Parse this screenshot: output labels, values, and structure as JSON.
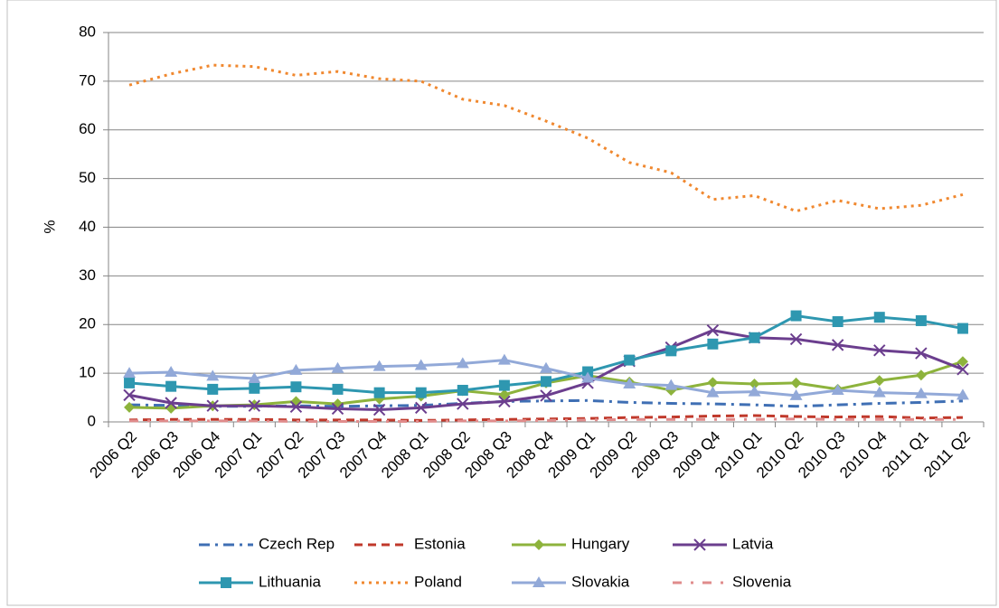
{
  "chart_data": {
    "type": "line",
    "y_label": "%",
    "categories": [
      "2006 Q2",
      "2006 Q3",
      "2006 Q4",
      "2007 Q1",
      "2007 Q2",
      "2007 Q3",
      "2007 Q4",
      "2008 Q1",
      "2008 Q2",
      "2008 Q3",
      "2008 Q4",
      "2009 Q1",
      "2009 Q2",
      "2009 Q3",
      "2009 Q4",
      "2010 Q1",
      "2010 Q2",
      "2010 Q3",
      "2010 Q4",
      "2011 Q1",
      "2011 Q2"
    ],
    "ylim": [
      0,
      80
    ],
    "yticks": [
      0,
      10,
      20,
      30,
      40,
      50,
      60,
      70,
      80
    ],
    "grid": true,
    "legend": "bottom",
    "series": [
      {
        "name": "Czech Rep",
        "color": "#3f6fb4",
        "dash": "dashdot",
        "marker": "none",
        "values": [
          3.5,
          3.4,
          3.2,
          3.2,
          3.3,
          3.2,
          3.3,
          3.4,
          3.8,
          4.2,
          4.3,
          4.4,
          4.0,
          3.8,
          3.7,
          3.5,
          3.2,
          3.5,
          3.8,
          4.0,
          4.3
        ]
      },
      {
        "name": "Estonia",
        "color": "#c0392b",
        "dash": "dash",
        "marker": "none",
        "values": [
          0.4,
          0.5,
          0.5,
          0.5,
          0.4,
          0.4,
          0.4,
          0.3,
          0.4,
          0.5,
          0.6,
          0.7,
          0.9,
          1.0,
          1.2,
          1.3,
          1.1,
          1.0,
          1.1,
          0.8,
          0.9
        ]
      },
      {
        "name": "Hungary",
        "color": "#8db33c",
        "dash": "solid",
        "marker": "diamond",
        "values": [
          3.0,
          2.8,
          3.3,
          3.5,
          4.2,
          3.7,
          4.7,
          5.3,
          6.4,
          5.6,
          8.0,
          9.5,
          8.2,
          6.5,
          8.1,
          7.8,
          8.0,
          6.7,
          8.5,
          9.6,
          12.4
        ]
      },
      {
        "name": "Latvia",
        "color": "#6b3e8e",
        "dash": "solid",
        "marker": "x",
        "values": [
          5.5,
          3.9,
          3.3,
          3.3,
          3.1,
          2.7,
          2.5,
          2.9,
          3.7,
          4.2,
          5.4,
          8.0,
          12.5,
          15.3,
          18.8,
          17.3,
          17.0,
          15.8,
          14.7,
          14.1,
          10.8
        ]
      },
      {
        "name": "Lithuania",
        "color": "#2e97b0",
        "dash": "solid",
        "marker": "square",
        "values": [
          8.0,
          7.3,
          6.7,
          6.9,
          7.2,
          6.7,
          6.0,
          6.0,
          6.5,
          7.5,
          8.3,
          10.3,
          12.7,
          14.6,
          16.0,
          17.3,
          21.8,
          20.6,
          21.5,
          20.8,
          19.2
        ]
      },
      {
        "name": "Poland",
        "color": "#f0882f",
        "dash": "dot",
        "marker": "none",
        "values": [
          69.2,
          71.5,
          73.3,
          73.0,
          71.2,
          72.0,
          70.5,
          70.0,
          66.3,
          65.0,
          61.8,
          58.3,
          53.3,
          51.2,
          45.7,
          46.5,
          43.3,
          45.5,
          43.8,
          44.5,
          46.7
        ]
      },
      {
        "name": "Slovakia",
        "color": "#92a9d8",
        "dash": "solid",
        "marker": "triangle",
        "values": [
          10.0,
          10.2,
          9.4,
          8.9,
          10.6,
          11.0,
          11.4,
          11.6,
          12.0,
          12.7,
          11.0,
          9.0,
          7.8,
          7.5,
          6.0,
          6.2,
          5.4,
          6.5,
          6.0,
          5.8,
          5.5
        ]
      },
      {
        "name": "Slovenia",
        "color": "#e08c8c",
        "dash": "sparsedashdot",
        "marker": "none",
        "values": [
          0.2,
          0.2,
          0.2,
          0.2,
          0.1,
          0.1,
          0.1,
          0.1,
          0.2,
          0.2,
          0.3,
          0.4,
          0.5,
          0.5,
          0.5,
          0.5,
          0.6,
          0.5,
          0.5,
          0.5,
          0.5
        ]
      }
    ]
  }
}
